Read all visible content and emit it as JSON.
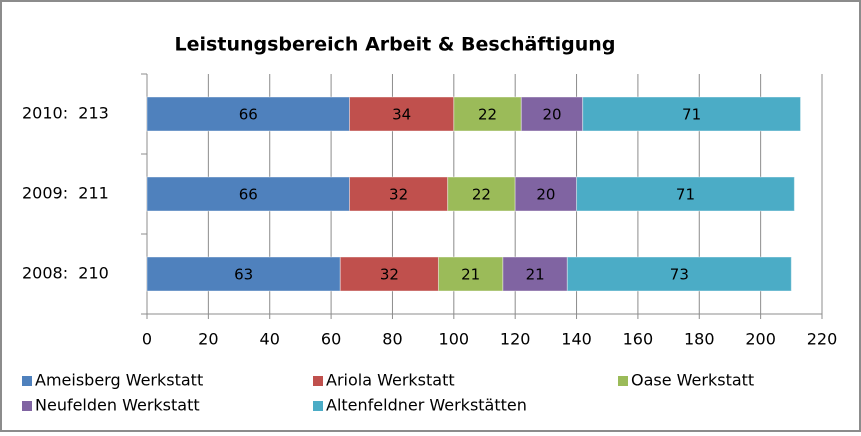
{
  "chart_data": {
    "type": "stacked-bar-horizontal",
    "title": "Leistungsbereich Arbeit & Beschäftigung",
    "categories": [
      "2010:  213",
      "2009:  211",
      "2008:  210"
    ],
    "series": [
      {
        "name": "Ameisberg Werkstatt",
        "color": "#4f81bd",
        "values": [
          66,
          66,
          63
        ]
      },
      {
        "name": "Ariola Werkstatt",
        "color": "#c0504d",
        "values": [
          34,
          32,
          32
        ]
      },
      {
        "name": "Oase Werkstatt",
        "color": "#9bbb59",
        "values": [
          22,
          22,
          21
        ]
      },
      {
        "name": "Neufelden Werkstatt",
        "color": "#8064a2",
        "values": [
          20,
          20,
          21
        ]
      },
      {
        "name": "Altenfeldner Werkstätten",
        "color": "#4bacc6",
        "values": [
          71,
          71,
          73
        ]
      }
    ],
    "xlim": [
      0,
      220
    ],
    "xticks": [
      0,
      20,
      40,
      60,
      80,
      100,
      120,
      140,
      160,
      180,
      200,
      220
    ],
    "grid": true,
    "legend": "bottom"
  }
}
